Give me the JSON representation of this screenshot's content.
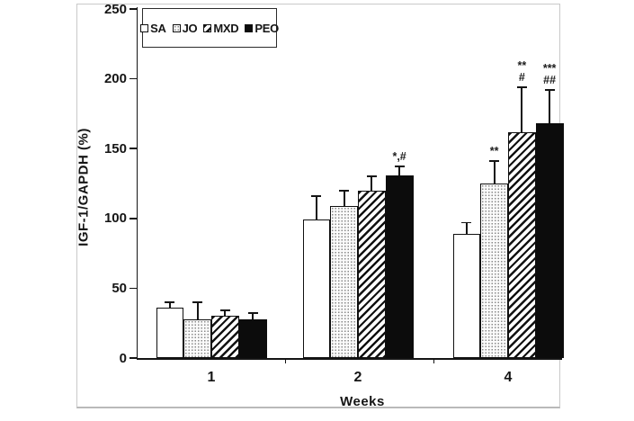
{
  "figure": {
    "background": "#ffffff",
    "border_color": "#c9c9c9",
    "text_color": "#151515",
    "bar_fill_black": "#0c0c0c"
  },
  "chart_data": {
    "type": "bar",
    "title": "",
    "xlabel": "Weeks",
    "ylabel": "IGF-1/GAPDH (%)",
    "ylim": [
      0,
      250
    ],
    "yticks": [
      0,
      50,
      100,
      150,
      200,
      250
    ],
    "categories": [
      "1",
      "2",
      "4"
    ],
    "grid": false,
    "legend_position": "top-left",
    "series": [
      {
        "name": "SA",
        "pattern": "plain-white",
        "values": [
          36,
          99,
          89
        ],
        "errors": [
          4,
          17,
          8
        ],
        "annotations": [
          [],
          [],
          []
        ]
      },
      {
        "name": "JO",
        "pattern": "dotted",
        "values": [
          28,
          109,
          125
        ],
        "errors": [
          12,
          11,
          16
        ],
        "annotations": [
          [],
          [],
          [
            "**"
          ]
        ]
      },
      {
        "name": "MXD",
        "pattern": "diagonal-hatch",
        "values": [
          30,
          120,
          162
        ],
        "errors": [
          4,
          10,
          32
        ],
        "annotations": [
          [],
          [],
          [
            "**",
            "#"
          ]
        ]
      },
      {
        "name": "PEO",
        "pattern": "solid-black",
        "values": [
          28,
          131,
          168
        ],
        "errors": [
          4,
          6,
          24
        ],
        "annotations": [
          [],
          [
            "*,#"
          ],
          [
            "***",
            "##"
          ]
        ]
      }
    ]
  }
}
